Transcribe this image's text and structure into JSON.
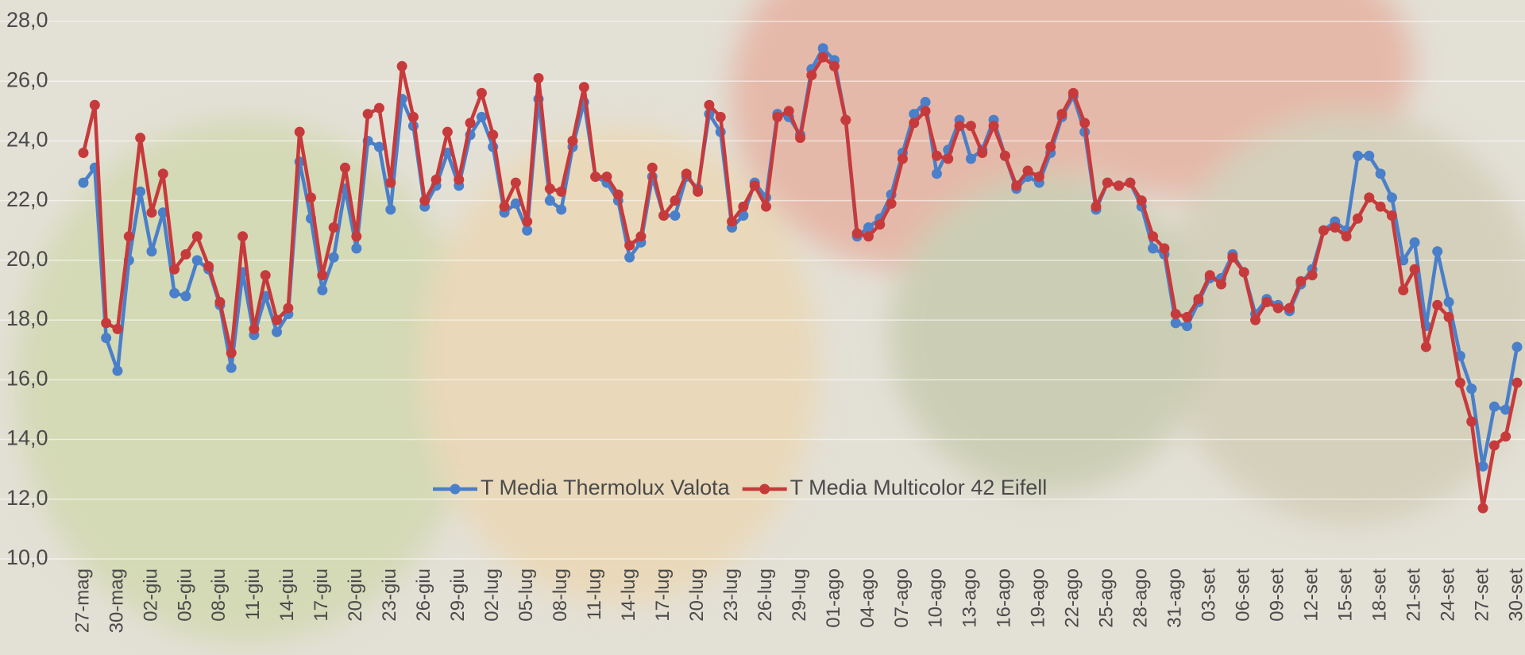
{
  "chart_data": {
    "type": "line",
    "categories": [
      "27-mag",
      null,
      null,
      "30-mag",
      null,
      null,
      "02-giu",
      null,
      null,
      "05-giu",
      null,
      null,
      "08-giu",
      null,
      null,
      "11-giu",
      null,
      null,
      "14-giu",
      null,
      null,
      "17-giu",
      null,
      null,
      "20-giu",
      null,
      null,
      "23-giu",
      null,
      null,
      "26-giu",
      null,
      null,
      "29-giu",
      null,
      null,
      "02-lug",
      null,
      null,
      "05-lug",
      null,
      null,
      "08-lug",
      null,
      null,
      "11-lug",
      null,
      null,
      "14-lug",
      null,
      null,
      "17-lug",
      null,
      null,
      "20-lug",
      null,
      null,
      "23-lug",
      null,
      null,
      "26-lug",
      null,
      null,
      "29-lug",
      null,
      null,
      "01-ago",
      null,
      null,
      "04-ago",
      null,
      null,
      "07-ago",
      null,
      null,
      "10-ago",
      null,
      null,
      "13-ago",
      null,
      null,
      "16-ago",
      null,
      null,
      "19-ago",
      null,
      null,
      "22-ago",
      null,
      null,
      "25-ago",
      null,
      null,
      "28-ago",
      null,
      null,
      "31-ago",
      null,
      null,
      "03-set",
      null,
      null,
      "06-set",
      null,
      null,
      "09-set",
      null,
      null,
      "12-set",
      null,
      null,
      "15-set",
      null,
      null,
      "18-set",
      null,
      null,
      "21-set",
      null,
      null,
      "24-set",
      null,
      null,
      "27-set",
      null,
      null,
      "30-set"
    ],
    "series": [
      {
        "name": "T Media Thermolux Valota",
        "color": "#4a7fc9",
        "values": [
          22.6,
          23.1,
          17.4,
          16.3,
          20.0,
          22.3,
          20.3,
          21.6,
          18.9,
          18.8,
          20.0,
          19.7,
          18.5,
          16.4,
          19.6,
          17.5,
          18.8,
          17.6,
          18.2,
          23.3,
          21.4,
          19.0,
          20.1,
          22.4,
          20.4,
          24.0,
          23.8,
          21.7,
          25.4,
          24.5,
          21.8,
          22.5,
          23.6,
          22.5,
          24.2,
          24.8,
          23.8,
          21.6,
          21.9,
          21.0,
          25.4,
          22.0,
          21.7,
          23.8,
          25.3,
          22.8,
          22.6,
          22.0,
          20.1,
          20.6,
          22.8,
          21.5,
          21.5,
          22.8,
          22.4,
          24.9,
          24.3,
          21.1,
          21.5,
          22.6,
          22.1,
          24.9,
          24.8,
          24.2,
          26.4,
          27.1,
          26.7,
          24.7,
          20.8,
          21.1,
          21.4,
          22.2,
          23.6,
          24.9,
          25.3,
          22.9,
          23.7,
          24.7,
          23.4,
          23.7,
          24.7,
          23.5,
          22.4,
          22.8,
          22.6,
          23.6,
          24.8,
          25.5,
          24.3,
          21.7,
          22.6,
          22.5,
          22.6,
          21.8,
          20.4,
          20.2,
          17.9,
          17.8,
          18.6,
          19.4,
          19.4,
          20.2,
          19.6,
          18.2,
          18.7,
          18.5,
          18.3,
          19.2,
          19.7,
          21.0,
          21.3,
          21.0,
          23.5,
          23.5,
          22.9,
          22.1,
          20.0,
          20.6,
          17.8,
          20.3,
          18.6,
          16.8,
          15.7,
          13.1,
          15.1,
          15.0,
          17.1
        ]
      },
      {
        "name": "T Media Multicolor 42 Eifell",
        "color": "#c73a3c",
        "values": [
          23.6,
          25.2,
          17.9,
          17.7,
          20.8,
          24.1,
          21.6,
          22.9,
          19.7,
          20.2,
          20.8,
          19.8,
          18.6,
          16.9,
          20.8,
          17.7,
          19.5,
          18.0,
          18.4,
          24.3,
          22.1,
          19.5,
          21.1,
          23.1,
          20.8,
          24.9,
          25.1,
          22.6,
          26.5,
          24.8,
          22.0,
          22.7,
          24.3,
          22.7,
          24.6,
          25.6,
          24.2,
          21.8,
          22.6,
          21.3,
          26.1,
          22.4,
          22.3,
          24.0,
          25.8,
          22.8,
          22.8,
          22.2,
          20.5,
          20.8,
          23.1,
          21.5,
          22.0,
          22.9,
          22.3,
          25.2,
          24.8,
          21.3,
          21.8,
          22.5,
          21.8,
          24.8,
          25.0,
          24.1,
          26.2,
          26.8,
          26.5,
          24.7,
          20.9,
          20.8,
          21.2,
          21.9,
          23.4,
          24.6,
          25.0,
          23.5,
          23.4,
          24.5,
          24.5,
          23.6,
          24.5,
          23.5,
          22.5,
          23.0,
          22.8,
          23.8,
          24.9,
          25.6,
          24.6,
          21.8,
          22.6,
          22.5,
          22.6,
          22.0,
          20.8,
          20.4,
          18.2,
          18.1,
          18.7,
          19.5,
          19.2,
          20.1,
          19.6,
          18.0,
          18.6,
          18.4,
          18.4,
          19.3,
          19.5,
          21.0,
          21.1,
          20.8,
          21.4,
          22.1,
          21.8,
          21.5,
          19.0,
          19.7,
          17.1,
          18.5,
          18.1,
          15.9,
          14.6,
          11.7,
          13.8,
          14.1,
          15.9
        ]
      }
    ],
    "ylim": [
      10,
      28
    ],
    "yticks": [
      {
        "value": 10,
        "label": "10,0"
      },
      {
        "value": 12,
        "label": "12,0"
      },
      {
        "value": 14,
        "label": "14,0"
      },
      {
        "value": 16,
        "label": "16,0"
      },
      {
        "value": 18,
        "label": "18,0"
      },
      {
        "value": 20,
        "label": "20,0"
      },
      {
        "value": 22,
        "label": "22,0"
      },
      {
        "value": 24,
        "label": "24,0"
      },
      {
        "value": 26,
        "label": "26,0"
      },
      {
        "value": 28,
        "label": "28,0"
      }
    ],
    "grid": true
  }
}
